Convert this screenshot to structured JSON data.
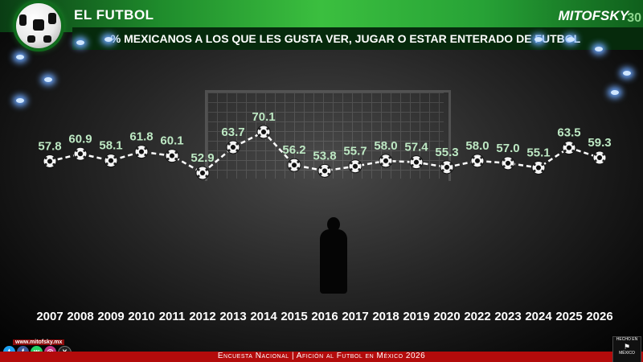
{
  "header": {
    "title": "EL FUTBOL",
    "logo_text": "MITOFSKY",
    "logo_num": "30"
  },
  "footer": {
    "survey": "Encuesta Nacional | Afición al Futbol en México 2026",
    "url": "www.mitofsky.mx",
    "made_in_top": "HECHO EN",
    "made_in_bottom": "MÉXICO",
    "social_icons": [
      "twitter-icon",
      "facebook-icon",
      "whatsapp-icon",
      "instagram-icon",
      "x-icon"
    ]
  },
  "colors": {
    "accent_green": "#2ab23a",
    "footer_red": "#b30b0b",
    "value_label": "#bde8c3"
  },
  "chart_data": {
    "type": "line",
    "title": "% MEXICANOS A LOS QUE LES GUSTA VER, JUGAR O ESTAR ENTERADO DE FUTBOL",
    "categories": [
      "2007",
      "2008",
      "2009",
      "2010",
      "2011",
      "2012",
      "2013",
      "2014",
      "2015",
      "2016",
      "2017",
      "2018",
      "2019",
      "2020",
      "2022",
      "2023",
      "2024",
      "2025",
      "2026"
    ],
    "values": [
      57.8,
      60.9,
      58.1,
      61.8,
      60.1,
      52.9,
      63.7,
      70.1,
      56.2,
      53.8,
      55.7,
      58.0,
      57.4,
      55.3,
      58.0,
      57.0,
      55.1,
      63.5,
      59.3
    ],
    "value_labels": [
      "57.8",
      "60.9",
      "58.1",
      "61.8",
      "60.1",
      "52.9",
      "63.7",
      "70.1",
      "56.2",
      "53.8",
      "55.7",
      "58.0",
      "57.4",
      "55.3",
      "58.0",
      "57.0",
      "55.1",
      "63.5",
      "59.3"
    ],
    "xlabel": "",
    "ylabel": "",
    "grid": false,
    "line_style": "dashed",
    "marker": "soccer-ball"
  }
}
